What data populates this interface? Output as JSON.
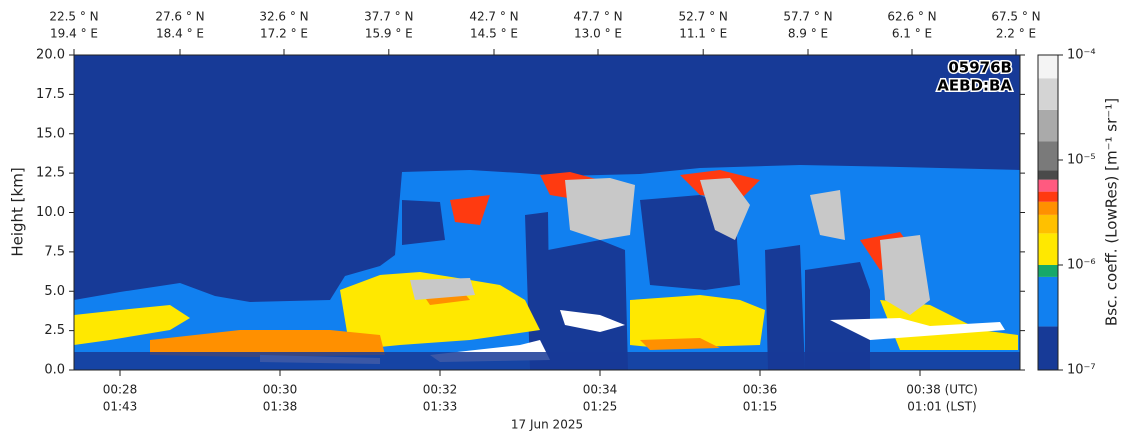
{
  "chart_data": {
    "type": "heatmap",
    "annotations": [
      "05976B",
      "AEBD:BA"
    ],
    "xlabel": "17 Jun 2025",
    "ylabel": "Height [km]",
    "xlim": [
      27.425,
      39.25
    ],
    "xticks": [
      {
        "value": 28,
        "label": "00:28"
      },
      {
        "value": 30,
        "label": "00:30"
      },
      {
        "value": 32,
        "label": "00:32"
      },
      {
        "value": 34,
        "label": "00:34"
      },
      {
        "value": 36,
        "label": "00:36"
      },
      {
        "value": 38,
        "label": "00:38 (UTC)"
      }
    ],
    "lst_labels": [
      "01:43",
      "01:38",
      "01:33",
      "01:25",
      "01:15",
      "01:01 (LST)"
    ],
    "x2ticks": [
      {
        "value": 27.425,
        "label": "22.5 ° N"
      },
      {
        "value": 28.75,
        "label": "27.6 ° N"
      },
      {
        "value": 30.05,
        "label": "32.6 ° N"
      },
      {
        "value": 31.36,
        "label": "37.7 ° N"
      },
      {
        "value": 32.675,
        "label": "42.7 ° N"
      },
      {
        "value": 33.975,
        "label": "47.7 ° N"
      },
      {
        "value": 35.29,
        "label": "52.7 ° N"
      },
      {
        "value": 36.6,
        "label": "57.7 ° N"
      },
      {
        "value": 37.9,
        "label": "62.6 ° N"
      },
      {
        "value": 39.2,
        "label": "67.5 ° N"
      }
    ],
    "x2_lon_labels": [
      "19.4 ° E",
      "18.4 ° E",
      "17.2 ° E",
      "15.9 ° E",
      "14.5 ° E",
      "13.0 ° E",
      "11.1 ° E",
      "8.9 ° E",
      "6.1 ° E",
      "2.2 ° E"
    ],
    "ylim": [
      0,
      20
    ],
    "yticks": [
      {
        "value": 0,
        "label": "0.0"
      },
      2.5,
      {
        "value": 5,
        "label": "5.0"
      },
      7.5,
      {
        "value": 10,
        "label": "10.0"
      },
      12.5,
      {
        "value": 15,
        "label": "15.0"
      },
      17.5,
      {
        "value": 20,
        "label": "20.0"
      }
    ],
    "colorbar": {
      "label": "Bsc. coeff. (LowRes) [m⁻¹ sr⁻¹]",
      "scale": "log",
      "lim": [
        1e-07,
        0.0001
      ],
      "ticks": [
        {
          "value": 1e-07,
          "label": "10⁻⁷"
        },
        {
          "value": 1e-06,
          "label": "10⁻⁶"
        },
        {
          "value": 1e-05,
          "label": "10⁻⁵"
        },
        {
          "value": 0.0001,
          "label": "10⁻⁴"
        }
      ],
      "bounds": [
        1e-07,
        2.6e-07,
        7.7e-07,
        1e-06,
        2e-06,
        3e-06,
        4e-06,
        5e-06,
        6.5e-06,
        8e-06,
        1.5e-05,
        3e-05,
        6e-05,
        0.0001
      ],
      "colors": [
        "#173a97",
        "#1180f0",
        "#16a86a",
        "#ffe800",
        "#ffc000",
        "#ff9000",
        "#ff3a10",
        "#ff5a80",
        "#4a4a4a",
        "#7a7a7a",
        "#aaaaaa",
        "#d4d4d4",
        "#f4f4f4"
      ]
    }
  }
}
